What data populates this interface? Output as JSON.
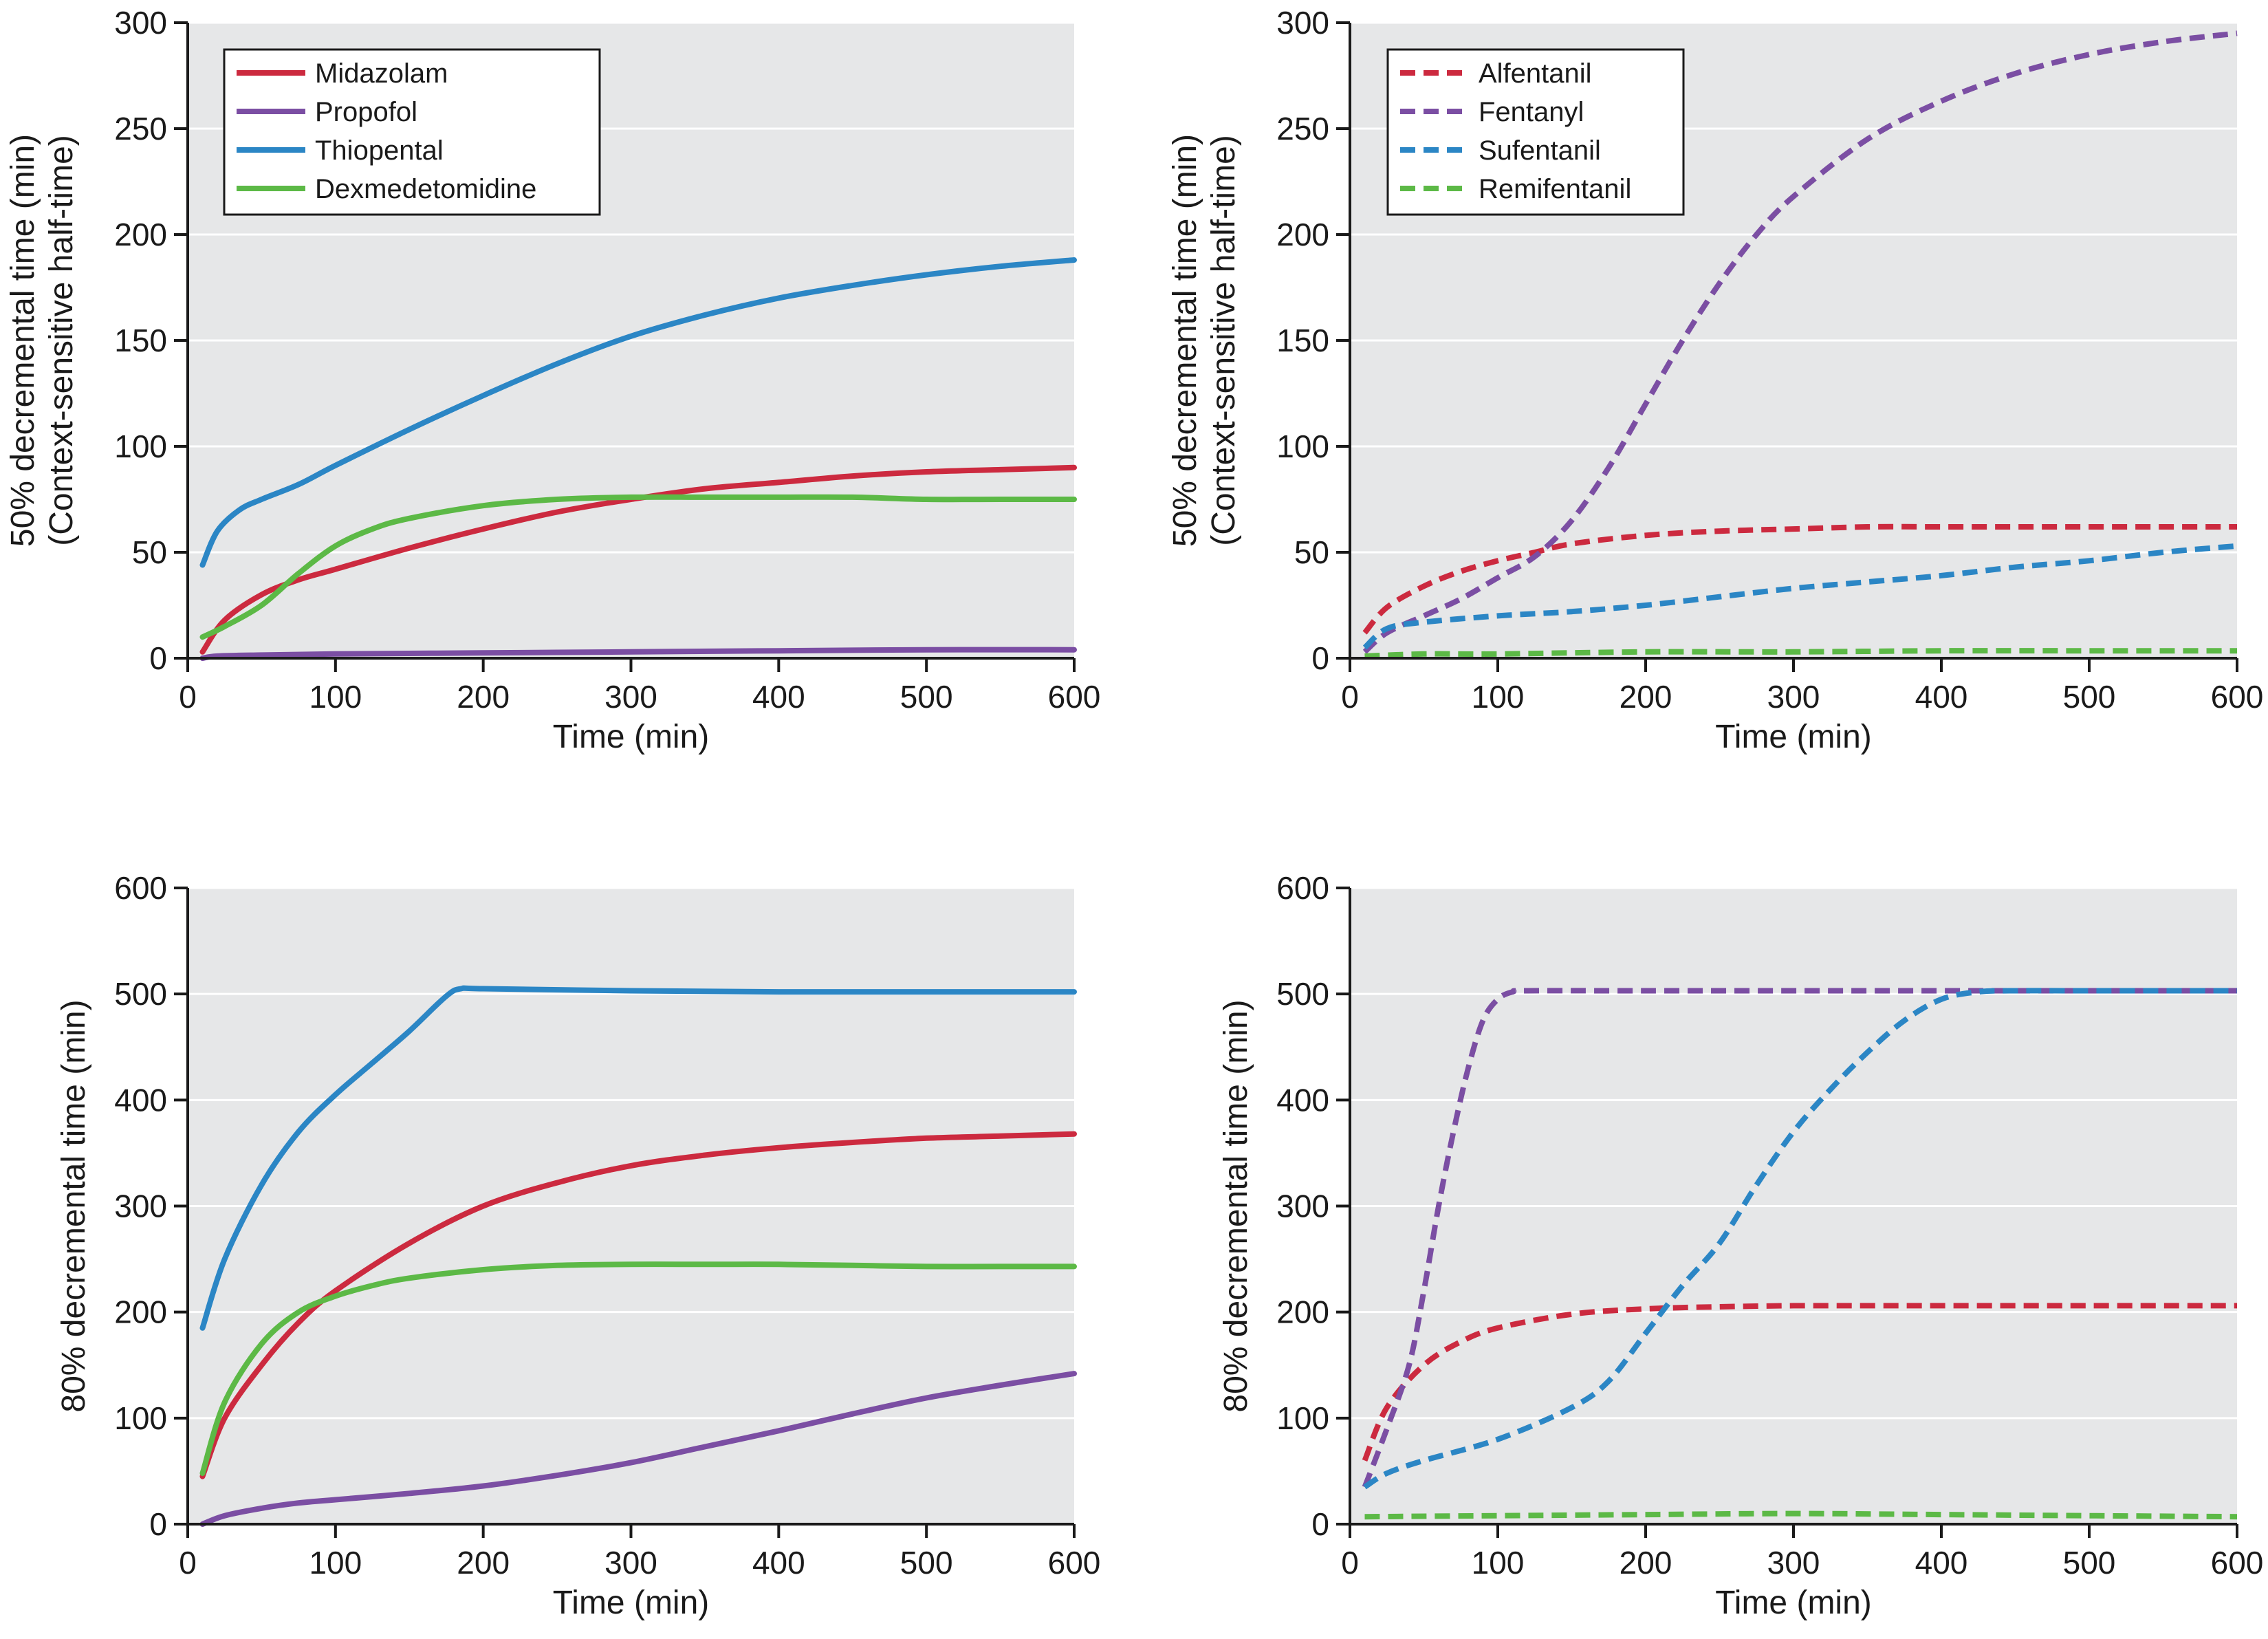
{
  "colors": {
    "red": "#cc2a3f",
    "purple": "#7b4ea3",
    "blue": "#2b86c5",
    "green": "#5cb946",
    "plot_bg": "#e6e7e8",
    "grid": "#ffffff",
    "axis": "#1a1a1a"
  },
  "chart_data": [
    {
      "type": "line",
      "position": "top-left",
      "xlabel": "Time (min)",
      "ylabel": [
        "50% decremental time (min)",
        "(Context-sensitive half-time)"
      ],
      "xlim": [
        0,
        600
      ],
      "ylim": [
        0,
        300
      ],
      "xticks": [
        0,
        100,
        200,
        300,
        400,
        500,
        600
      ],
      "yticks": [
        0,
        50,
        100,
        150,
        200,
        250,
        300
      ],
      "grid": true,
      "legend": "top-left",
      "series": [
        {
          "name": "Midazolam",
          "color": "red",
          "style": "solid",
          "x": [
            10,
            25,
            50,
            75,
            100,
            150,
            200,
            250,
            300,
            350,
            400,
            450,
            500,
            550,
            600
          ],
          "y": [
            3,
            18,
            30,
            37,
            42,
            52,
            61,
            69,
            75,
            80,
            83,
            86,
            88,
            89,
            90
          ]
        },
        {
          "name": "Propofol",
          "color": "purple",
          "style": "solid",
          "x": [
            10,
            20,
            50,
            100,
            200,
            300,
            400,
            500,
            600
          ],
          "y": [
            0,
            1,
            1.5,
            2,
            2.5,
            3,
            3.5,
            4,
            4
          ]
        },
        {
          "name": "Thiopental",
          "color": "blue",
          "style": "solid",
          "x": [
            10,
            20,
            35,
            50,
            75,
            100,
            150,
            200,
            250,
            300,
            350,
            400,
            450,
            500,
            550,
            600
          ],
          "y": [
            44,
            60,
            70,
            75,
            82,
            91,
            108,
            124,
            139,
            152,
            162,
            170,
            176,
            181,
            185,
            188
          ]
        },
        {
          "name": "Dexmedetomidine",
          "color": "green",
          "style": "solid",
          "x": [
            10,
            25,
            50,
            75,
            100,
            125,
            150,
            200,
            250,
            300,
            350,
            400,
            450,
            500,
            550,
            600
          ],
          "y": [
            10,
            15,
            25,
            40,
            53,
            61,
            66,
            72,
            75,
            76,
            76,
            76,
            76,
            75,
            75,
            75
          ]
        }
      ]
    },
    {
      "type": "line",
      "position": "top-right",
      "xlabel": "Time (min)",
      "ylabel": [
        "50% decremental time (min)",
        "(Context-sensitive half-time)"
      ],
      "xlim": [
        0,
        600
      ],
      "ylim": [
        0,
        300
      ],
      "xticks": [
        0,
        100,
        200,
        300,
        400,
        500,
        600
      ],
      "yticks": [
        0,
        50,
        100,
        150,
        200,
        250,
        300
      ],
      "grid": true,
      "legend": "top-left",
      "series": [
        {
          "name": "Alfentanil",
          "color": "red",
          "style": "dashed",
          "x": [
            10,
            25,
            50,
            75,
            100,
            125,
            150,
            200,
            250,
            300,
            350,
            400,
            450,
            500,
            550,
            600
          ],
          "y": [
            12,
            24,
            34,
            41,
            46,
            50,
            54,
            58,
            60,
            61,
            62,
            62,
            62,
            62,
            62,
            62
          ]
        },
        {
          "name": "Fentanyl",
          "color": "purple",
          "style": "dashed",
          "x": [
            10,
            25,
            50,
            75,
            100,
            125,
            150,
            175,
            200,
            225,
            250,
            275,
            300,
            350,
            400,
            450,
            500,
            550,
            600
          ],
          "y": [
            3,
            12,
            20,
            28,
            38,
            48,
            65,
            90,
            120,
            150,
            177,
            200,
            218,
            245,
            263,
            276,
            285,
            291,
            295
          ]
        },
        {
          "name": "Sufentanil",
          "color": "blue",
          "style": "dashed",
          "x": [
            10,
            25,
            50,
            100,
            150,
            200,
            250,
            300,
            350,
            400,
            450,
            500,
            550,
            600
          ],
          "y": [
            5,
            14,
            17,
            20,
            22,
            25,
            29,
            33,
            36,
            39,
            43,
            46,
            50,
            53
          ]
        },
        {
          "name": "Remifentanil",
          "color": "green",
          "style": "dashed",
          "x": [
            10,
            50,
            100,
            200,
            300,
            400,
            500,
            600
          ],
          "y": [
            1,
            2,
            2,
            3,
            3,
            3.5,
            3.5,
            3.5
          ]
        }
      ]
    },
    {
      "type": "line",
      "position": "bottom-left",
      "xlabel": "Time (min)",
      "ylabel": [
        "80% decremental time (min)"
      ],
      "xlim": [
        0,
        600
      ],
      "ylim": [
        0,
        600
      ],
      "xticks": [
        0,
        100,
        200,
        300,
        400,
        500,
        600
      ],
      "yticks": [
        0,
        100,
        200,
        300,
        400,
        500,
        600
      ],
      "grid": true,
      "series": [
        {
          "name": "Midazolam",
          "color": "red",
          "style": "solid",
          "x": [
            10,
            25,
            50,
            75,
            100,
            150,
            200,
            250,
            300,
            350,
            400,
            450,
            500,
            550,
            600
          ],
          "y": [
            45,
            100,
            150,
            190,
            220,
            265,
            300,
            322,
            338,
            348,
            355,
            360,
            364,
            366,
            368
          ]
        },
        {
          "name": "Propofol",
          "color": "purple",
          "style": "solid",
          "x": [
            10,
            25,
            50,
            75,
            100,
            150,
            200,
            250,
            300,
            350,
            400,
            450,
            500,
            550,
            600
          ],
          "y": [
            0,
            8,
            15,
            20,
            23,
            29,
            36,
            46,
            58,
            73,
            88,
            104,
            119,
            131,
            142
          ]
        },
        {
          "name": "Thiopental",
          "color": "blue",
          "style": "solid",
          "x": [
            10,
            25,
            50,
            75,
            100,
            125,
            150,
            175,
            185,
            200,
            300,
            400,
            500,
            600
          ],
          "y": [
            185,
            250,
            320,
            370,
            405,
            435,
            465,
            498,
            505,
            505,
            503,
            502,
            502,
            502
          ]
        },
        {
          "name": "Dexmedetomidine",
          "color": "green",
          "style": "solid",
          "x": [
            10,
            25,
            50,
            75,
            100,
            125,
            150,
            200,
            250,
            300,
            350,
            400,
            450,
            500,
            550,
            600
          ],
          "y": [
            48,
            115,
            170,
            200,
            215,
            225,
            232,
            240,
            244,
            245,
            245,
            245,
            244,
            243,
            243,
            243
          ]
        }
      ]
    },
    {
      "type": "line",
      "position": "bottom-right",
      "xlabel": "Time (min)",
      "ylabel": [
        "80% decremental time (min)"
      ],
      "xlim": [
        0,
        600
      ],
      "ylim": [
        0,
        600
      ],
      "xticks": [
        0,
        100,
        200,
        300,
        400,
        500,
        600
      ],
      "yticks": [
        0,
        100,
        200,
        300,
        400,
        500,
        600
      ],
      "grid": true,
      "series": [
        {
          "name": "Alfentanil",
          "color": "red",
          "style": "dashed",
          "x": [
            10,
            25,
            50,
            75,
            100,
            150,
            200,
            250,
            300,
            350,
            400,
            500,
            600
          ],
          "y": [
            60,
            110,
            150,
            172,
            185,
            198,
            203,
            205,
            206,
            206,
            206,
            206,
            206
          ]
        },
        {
          "name": "Fentanyl",
          "color": "purple",
          "style": "dashed",
          "x": [
            10,
            25,
            40,
            50,
            60,
            70,
            80,
            90,
            100,
            110,
            120,
            200,
            300,
            400,
            500,
            600
          ],
          "y": [
            35,
            90,
            150,
            220,
            300,
            370,
            430,
            475,
            495,
            502,
            503,
            503,
            503,
            503,
            503,
            503
          ]
        },
        {
          "name": "Sufentanil",
          "color": "blue",
          "style": "dashed",
          "x": [
            10,
            25,
            50,
            100,
            150,
            175,
            200,
            225,
            250,
            275,
            300,
            325,
            350,
            375,
            400,
            425,
            450,
            500,
            600
          ],
          "y": [
            35,
            48,
            60,
            80,
            110,
            135,
            180,
            225,
            265,
            320,
            370,
            410,
            445,
            475,
            495,
            502,
            503,
            503,
            503
          ]
        },
        {
          "name": "Remifentanil",
          "color": "green",
          "style": "dashed",
          "x": [
            10,
            100,
            200,
            300,
            400,
            500,
            600
          ],
          "y": [
            7,
            8,
            9,
            10,
            9,
            8,
            7
          ]
        }
      ]
    }
  ]
}
